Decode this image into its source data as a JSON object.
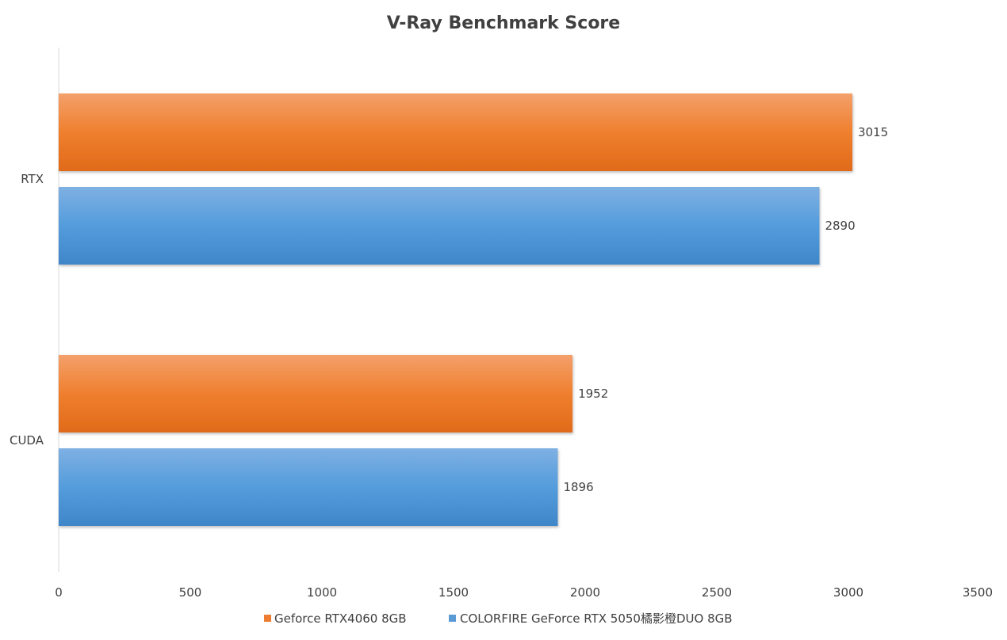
{
  "chart_data": {
    "type": "bar",
    "orientation": "horizontal",
    "title": "V-Ray Benchmark Score",
    "xlabel": "",
    "ylabel": "",
    "categories": [
      "RTX",
      "CUDA"
    ],
    "series": [
      {
        "name": "Geforce RTX4060 8GB",
        "values": [
          3015,
          1952
        ],
        "color": "#ED7D31"
      },
      {
        "name": "COLORFIRE GeForce RTX 5050橘影橙DUO 8GB",
        "values": [
          2890,
          1896
        ],
        "color": "#5B9BD5"
      }
    ],
    "xlim": [
      0,
      3500
    ],
    "xticks": [
      0,
      500,
      1000,
      1500,
      2000,
      2500,
      3000,
      3500
    ],
    "grid": false,
    "legend_position": "bottom",
    "data_labels": true
  }
}
